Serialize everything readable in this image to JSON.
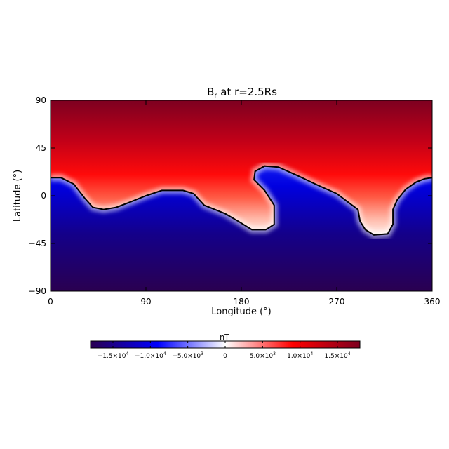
{
  "chart_data": {
    "type": "heatmap",
    "title_main": "B",
    "title_sub": "r",
    "title_rest": " at r=2.5Rs",
    "xlabel": "Longitude (°)",
    "ylabel": "Latitude (°)",
    "xlim": [
      0,
      360
    ],
    "ylim": [
      -90,
      90
    ],
    "xticks": [
      0,
      90,
      180,
      270,
      360
    ],
    "xtick_labels": [
      "0",
      "90",
      "180",
      "270",
      "360"
    ],
    "yticks": [
      90,
      45,
      0,
      -45,
      -90
    ],
    "ytick_labels": [
      "90",
      "45",
      "0",
      "−45",
      "−90"
    ],
    "colorbar": {
      "label": "nT",
      "range": [
        -18000,
        18000
      ],
      "ticks": [
        -15000,
        -10000,
        -5000,
        0,
        5000,
        10000,
        15000
      ],
      "tick_labels": [
        {
          "mant": "−1.5",
          "exp": "4"
        },
        {
          "mant": "−1.0",
          "exp": "4"
        },
        {
          "mant": "−5.0",
          "exp": "3"
        },
        {
          "mant": "0",
          "exp": ""
        },
        {
          "mant": "5.0",
          "exp": "3"
        },
        {
          "mant": "1.0",
          "exp": "4"
        },
        {
          "mant": "1.5",
          "exp": "4"
        }
      ],
      "colors": [
        "#2a0050",
        "#0000ff",
        "#ffffff",
        "#ff0000",
        "#7d0020"
      ]
    },
    "neutral_line_lonlat": [
      [
        0,
        17
      ],
      [
        10,
        17
      ],
      [
        22,
        11
      ],
      [
        32,
        -2
      ],
      [
        40,
        -11
      ],
      [
        50,
        -13
      ],
      [
        62,
        -11
      ],
      [
        75,
        -6
      ],
      [
        90,
        0
      ],
      [
        105,
        5
      ],
      [
        125,
        5
      ],
      [
        135,
        2
      ],
      [
        145,
        -9
      ],
      [
        155,
        -13
      ],
      [
        165,
        -17
      ],
      [
        177,
        -24
      ],
      [
        190,
        -32
      ],
      [
        203,
        -32
      ],
      [
        211,
        -27
      ],
      [
        211,
        -9
      ],
      [
        202,
        5
      ],
      [
        192,
        15
      ],
      [
        193,
        23
      ],
      [
        202,
        28
      ],
      [
        215,
        27
      ],
      [
        233,
        19
      ],
      [
        252,
        10
      ],
      [
        270,
        2
      ],
      [
        282,
        -7
      ],
      [
        290,
        -13
      ],
      [
        292,
        -24
      ],
      [
        297,
        -32
      ],
      [
        305,
        -37
      ],
      [
        318,
        -36
      ],
      [
        323,
        -27
      ],
      [
        323,
        -13
      ],
      [
        327,
        -4
      ],
      [
        335,
        6
      ],
      [
        345,
        13
      ],
      [
        353,
        16
      ],
      [
        360,
        17
      ]
    ]
  }
}
